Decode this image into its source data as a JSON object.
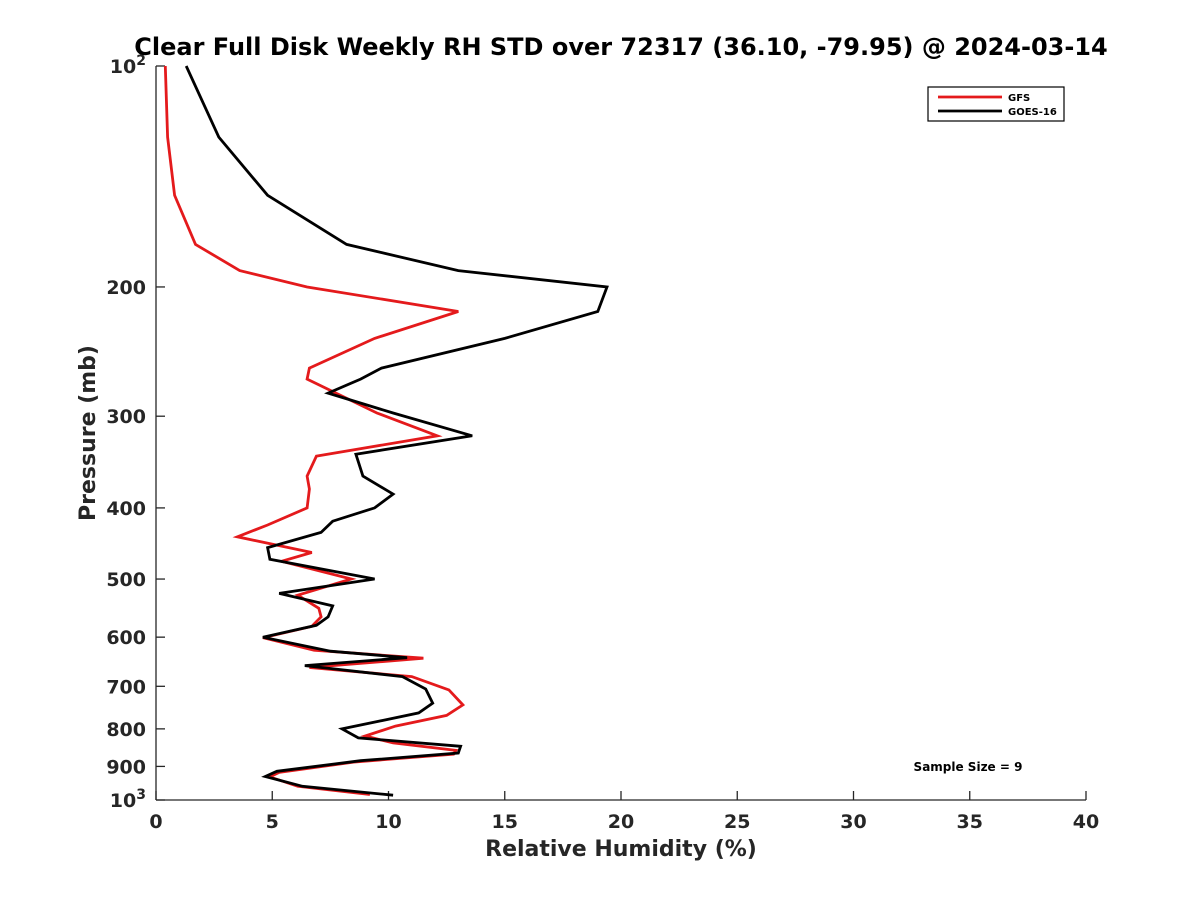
{
  "chart_data": {
    "type": "line",
    "title": "Clear Full Disk Weekly RH STD over 72317 (36.10, -79.95) @ 2024-03-14",
    "xlabel": "Relative Humidity (%)",
    "ylabel": "Pressure (mb)",
    "xlim": [
      0,
      40
    ],
    "ylim": [
      100,
      1000
    ],
    "y_scale": "log",
    "y_reversed": true,
    "x_ticks": [
      "0",
      "5",
      "10",
      "15",
      "20",
      "25",
      "30",
      "35",
      "40"
    ],
    "y_ticks": [
      {
        "value": 100,
        "base": "10",
        "exp": "2"
      },
      {
        "value": 200,
        "label": "200"
      },
      {
        "value": 300,
        "label": "300"
      },
      {
        "value": 400,
        "label": "400"
      },
      {
        "value": 500,
        "label": "500"
      },
      {
        "value": 600,
        "label": "600"
      },
      {
        "value": 700,
        "label": "700"
      },
      {
        "value": 800,
        "label": "800"
      },
      {
        "value": 900,
        "label": "900"
      },
      {
        "value": 1000,
        "base": "10",
        "exp": "3"
      }
    ],
    "legend_position": "top-right",
    "annotation": "Sample Size = 9",
    "series": [
      {
        "name": "GFS",
        "color": "#e41a1c",
        "points": [
          [
            0.4,
            100
          ],
          [
            0.5,
            125
          ],
          [
            0.8,
            150
          ],
          [
            1.7,
            175
          ],
          [
            3.6,
            190
          ],
          [
            6.5,
            200
          ],
          [
            13.0,
            216
          ],
          [
            9.4,
            235
          ],
          [
            6.6,
            258
          ],
          [
            6.5,
            267
          ],
          [
            9.5,
            297
          ],
          [
            12.1,
            319
          ],
          [
            6.9,
            340
          ],
          [
            6.5,
            362
          ],
          [
            6.6,
            377
          ],
          [
            6.5,
            400
          ],
          [
            4.8,
            422
          ],
          [
            3.5,
            438
          ],
          [
            6.7,
            460
          ],
          [
            5.4,
            473
          ],
          [
            8.4,
            500
          ],
          [
            6.1,
            526
          ],
          [
            7.0,
            548
          ],
          [
            7.1,
            563
          ],
          [
            6.7,
            580
          ],
          [
            4.6,
            601
          ],
          [
            6.8,
            625
          ],
          [
            11.5,
            641
          ],
          [
            6.6,
            660
          ],
          [
            11.0,
            679
          ],
          [
            12.6,
            708
          ],
          [
            13.2,
            742
          ],
          [
            12.5,
            767
          ],
          [
            10.3,
            793
          ],
          [
            9.0,
            818
          ],
          [
            10.2,
            836
          ],
          [
            12.9,
            856
          ],
          [
            12.8,
            866
          ],
          [
            8.5,
            888
          ],
          [
            5.3,
            917
          ],
          [
            4.9,
            930
          ],
          [
            6.1,
            958
          ],
          [
            9.2,
            983
          ]
        ]
      },
      {
        "name": "GOES-16",
        "color": "#000000",
        "points": [
          [
            1.3,
            100
          ],
          [
            2.7,
            125
          ],
          [
            4.8,
            150
          ],
          [
            8.2,
            175
          ],
          [
            13.0,
            190
          ],
          [
            19.4,
            200
          ],
          [
            19.0,
            216
          ],
          [
            15.0,
            235
          ],
          [
            9.7,
            258
          ],
          [
            8.8,
            267
          ],
          [
            7.4,
            279
          ],
          [
            10.2,
            297
          ],
          [
            13.6,
            319
          ],
          [
            8.6,
            338
          ],
          [
            8.9,
            362
          ],
          [
            10.2,
            383
          ],
          [
            9.4,
            400
          ],
          [
            7.6,
            417
          ],
          [
            7.1,
            432
          ],
          [
            4.8,
            453
          ],
          [
            4.9,
            470
          ],
          [
            9.4,
            500
          ],
          [
            5.3,
            523
          ],
          [
            7.6,
            544
          ],
          [
            7.4,
            563
          ],
          [
            6.9,
            578
          ],
          [
            4.6,
            600
          ],
          [
            7.5,
            627
          ],
          [
            10.8,
            640
          ],
          [
            6.4,
            656
          ],
          [
            10.6,
            679
          ],
          [
            11.6,
            706
          ],
          [
            11.9,
            738
          ],
          [
            11.3,
            761
          ],
          [
            8.0,
            800
          ],
          [
            8.7,
            823
          ],
          [
            13.1,
            845
          ],
          [
            13.0,
            863
          ],
          [
            8.8,
            884
          ],
          [
            5.2,
            914
          ],
          [
            4.7,
            929
          ],
          [
            6.3,
            958
          ],
          [
            10.2,
            985
          ]
        ]
      }
    ]
  }
}
